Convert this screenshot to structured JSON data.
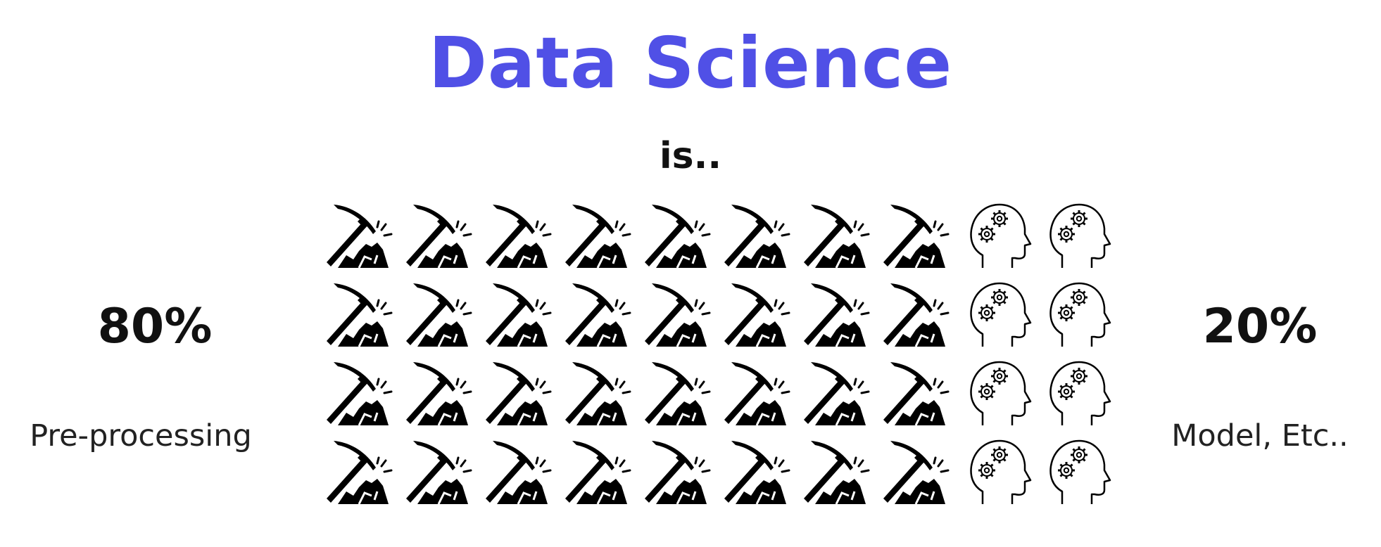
{
  "header": {
    "title": "Data Science",
    "subtitle": "is.."
  },
  "left_stat": {
    "value": "80%",
    "caption": "Pre-processing"
  },
  "right_stat": {
    "value": "20%",
    "caption": "Model, Etc.."
  },
  "icon_grid": {
    "rows": 4,
    "columns": 10,
    "segments": [
      {
        "icon": "pickaxe-icon",
        "columns_per_row": 8
      },
      {
        "icon": "head-gears-icon",
        "columns_per_row": 2
      }
    ]
  },
  "colors": {
    "title": "#5050e6",
    "text": "#111111",
    "background": "#ffffff"
  }
}
